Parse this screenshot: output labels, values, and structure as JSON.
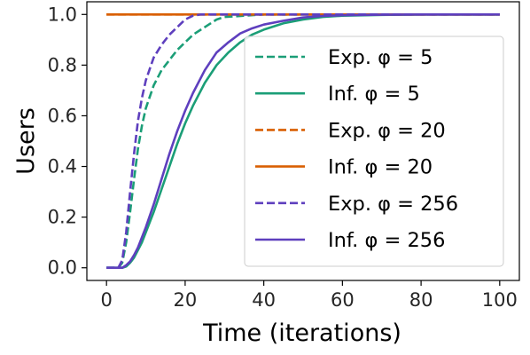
{
  "chart_data": {
    "type": "line",
    "title": "",
    "xlabel": "Time (iterations)",
    "ylabel": "Users",
    "xlim": [
      -5,
      105
    ],
    "ylim": [
      -0.05,
      1.05
    ],
    "xticks": [
      0,
      20,
      40,
      60,
      80,
      100
    ],
    "xtick_labels": [
      "0",
      "20",
      "40",
      "60",
      "80",
      "100"
    ],
    "yticks": [
      0.0,
      0.2,
      0.4,
      0.6,
      0.8,
      1.0
    ],
    "ytick_labels": [
      "0.0",
      "0.2",
      "0.4",
      "0.6",
      "0.8",
      "1.0"
    ],
    "grid": false,
    "legend_position": "bottom-right",
    "series": [
      {
        "name": "Exp. φ = 5",
        "color": "#1b9e77",
        "dash": true,
        "x": [
          0,
          3,
          4,
          5,
          6,
          7,
          8,
          9,
          10,
          12,
          14,
          16,
          18,
          20,
          22,
          24,
          26,
          28,
          30,
          35,
          40,
          50,
          60,
          80,
          100
        ],
        "y": [
          0.0,
          0.0,
          0.02,
          0.1,
          0.22,
          0.35,
          0.47,
          0.56,
          0.63,
          0.72,
          0.78,
          0.82,
          0.86,
          0.89,
          0.92,
          0.94,
          0.96,
          0.98,
          0.99,
          0.995,
          1.0,
          1.0,
          1.0,
          1.0,
          1.0
        ]
      },
      {
        "name": "Inf. φ = 5",
        "color": "#1b9e77",
        "dash": false,
        "x": [
          0,
          3,
          4,
          5,
          6,
          7,
          8,
          9,
          10,
          12,
          14,
          16,
          18,
          20,
          22,
          25,
          28,
          31,
          34,
          37,
          40,
          45,
          50,
          55,
          60,
          70,
          80,
          100
        ],
        "y": [
          0.0,
          0.0,
          0.0,
          0.005,
          0.02,
          0.04,
          0.07,
          0.1,
          0.14,
          0.22,
          0.31,
          0.4,
          0.49,
          0.57,
          0.64,
          0.73,
          0.8,
          0.85,
          0.89,
          0.92,
          0.94,
          0.965,
          0.98,
          0.99,
          0.995,
          0.998,
          1.0,
          1.0
        ]
      },
      {
        "name": "Exp. φ = 20",
        "color": "#d95f02",
        "dash": true,
        "x": [
          0,
          100
        ],
        "y": [
          1.0,
          1.0
        ]
      },
      {
        "name": "Inf. φ = 20",
        "color": "#d95f02",
        "dash": false,
        "x": [
          0,
          100
        ],
        "y": [
          1.0,
          1.0
        ]
      },
      {
        "name": "Exp. φ = 256",
        "color": "#5e3fbe",
        "dash": true,
        "x": [
          0,
          3,
          4,
          5,
          6,
          7,
          8,
          9,
          10,
          12,
          14,
          16,
          18,
          20,
          22,
          24,
          26,
          30,
          40,
          60,
          80,
          100
        ],
        "y": [
          0.0,
          0.0,
          0.03,
          0.14,
          0.3,
          0.45,
          0.58,
          0.67,
          0.74,
          0.83,
          0.88,
          0.92,
          0.95,
          0.98,
          0.995,
          1.0,
          1.0,
          1.0,
          1.0,
          1.0,
          1.0,
          1.0
        ]
      },
      {
        "name": "Inf. φ = 256",
        "color": "#5e3fbe",
        "dash": false,
        "x": [
          0,
          3,
          4,
          5,
          6,
          7,
          8,
          9,
          10,
          12,
          14,
          16,
          18,
          20,
          22,
          25,
          28,
          31,
          34,
          37,
          40,
          45,
          50,
          55,
          60,
          70,
          80,
          100
        ],
        "y": [
          0.0,
          0.0,
          0.0,
          0.01,
          0.025,
          0.05,
          0.08,
          0.12,
          0.16,
          0.25,
          0.35,
          0.45,
          0.54,
          0.62,
          0.69,
          0.78,
          0.85,
          0.89,
          0.925,
          0.945,
          0.96,
          0.975,
          0.988,
          0.994,
          0.997,
          0.999,
          1.0,
          1.0
        ]
      }
    ]
  }
}
